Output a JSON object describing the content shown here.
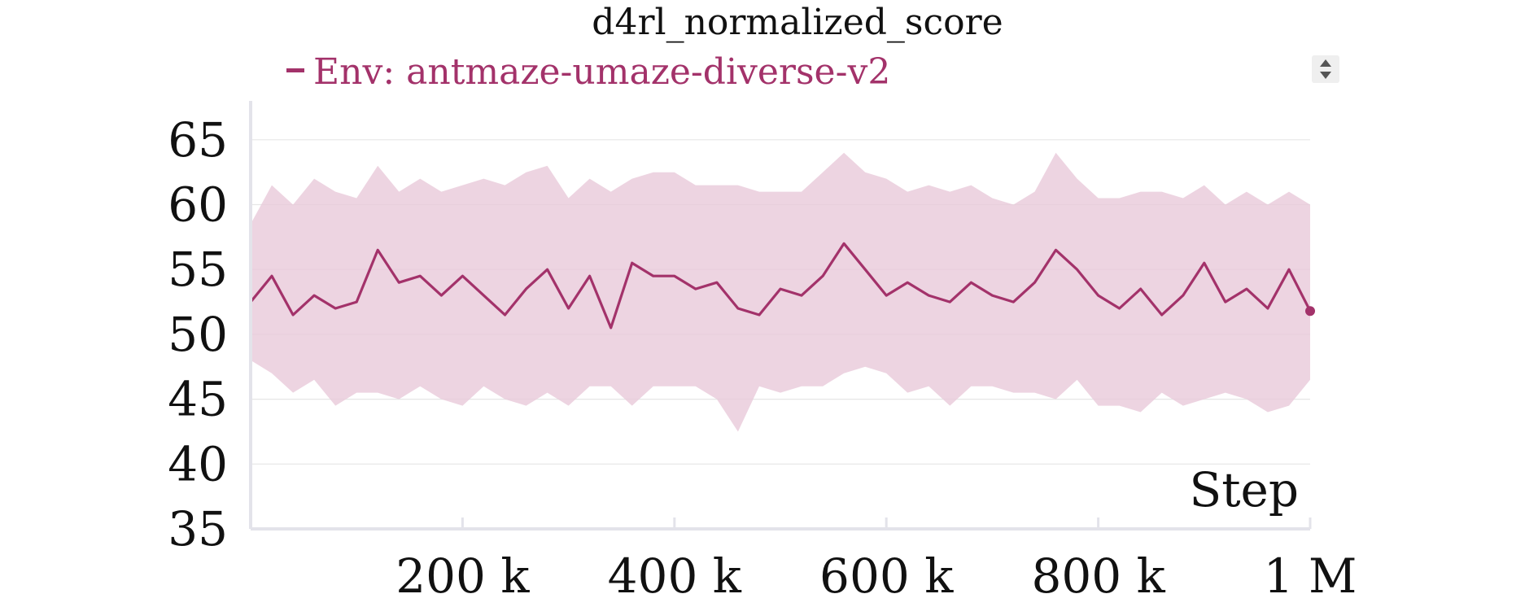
{
  "chart_data": {
    "type": "line",
    "title": "d4rl_normalized_score",
    "xlabel": "Step",
    "ylabel": "",
    "xlim": [
      0,
      1000000
    ],
    "ylim": [
      35,
      68
    ],
    "y_ticks": [
      35,
      40,
      45,
      50,
      55,
      60,
      65
    ],
    "x_ticks": [
      {
        "value": 200000,
        "label": "200 k"
      },
      {
        "value": 400000,
        "label": "400 k"
      },
      {
        "value": 600000,
        "label": "600 k"
      },
      {
        "value": 800000,
        "label": "800 k"
      },
      {
        "value": 1000000,
        "label": "1 M"
      }
    ],
    "grid": true,
    "legend_position": "top-left",
    "series": [
      {
        "name": "Env: antmaze-umaze-diverse-v2",
        "color": "#a3326a",
        "band_color": "#e8c9da",
        "x": [
          0,
          20000,
          40000,
          60000,
          80000,
          100000,
          120000,
          140000,
          160000,
          180000,
          200000,
          220000,
          240000,
          260000,
          280000,
          300000,
          320000,
          340000,
          360000,
          380000,
          400000,
          420000,
          440000,
          460000,
          480000,
          500000,
          520000,
          540000,
          560000,
          580000,
          600000,
          620000,
          640000,
          660000,
          680000,
          700000,
          720000,
          740000,
          760000,
          780000,
          800000,
          820000,
          840000,
          860000,
          880000,
          900000,
          920000,
          940000,
          960000,
          980000,
          1000000
        ],
        "y": [
          52.5,
          54.5,
          51.5,
          53.0,
          52.0,
          52.5,
          56.5,
          54.0,
          54.5,
          53.0,
          54.5,
          53.0,
          51.5,
          53.5,
          55.0,
          52.0,
          54.5,
          50.5,
          55.5,
          54.5,
          54.5,
          53.5,
          54.0,
          52.0,
          51.5,
          53.5,
          53.0,
          54.5,
          57.0,
          55.0,
          53.0,
          54.0,
          53.0,
          52.5,
          54.0,
          53.0,
          52.5,
          54.0,
          56.5,
          55.0,
          53.0,
          52.0,
          53.5,
          51.5,
          53.0,
          55.5,
          52.5,
          53.5,
          52.0,
          55.0,
          51.8
        ],
        "lower": [
          48.0,
          47.0,
          45.5,
          46.5,
          44.5,
          45.5,
          45.5,
          45.0,
          46.0,
          45.0,
          44.5,
          46.0,
          45.0,
          44.5,
          45.5,
          44.5,
          46.0,
          46.0,
          44.5,
          46.0,
          46.0,
          46.0,
          45.0,
          42.5,
          46.0,
          45.5,
          46.0,
          46.0,
          47.0,
          47.5,
          47.0,
          45.5,
          46.0,
          44.5,
          46.0,
          46.0,
          45.5,
          45.5,
          45.0,
          46.5,
          44.5,
          44.5,
          44.0,
          45.5,
          44.5,
          45.0,
          45.5,
          45.0,
          44.0,
          44.5,
          46.5
        ],
        "upper": [
          58.5,
          61.5,
          60.0,
          62.0,
          61.0,
          60.5,
          63.0,
          61.0,
          62.0,
          61.0,
          61.5,
          62.0,
          61.5,
          62.5,
          63.0,
          60.5,
          62.0,
          61.0,
          62.0,
          62.5,
          62.5,
          61.5,
          61.5,
          61.5,
          61.0,
          61.0,
          61.0,
          62.5,
          64.0,
          62.5,
          62.0,
          61.0,
          61.5,
          61.0,
          61.5,
          60.5,
          60.0,
          61.0,
          64.0,
          62.0,
          60.5,
          60.5,
          61.0,
          61.0,
          60.5,
          61.5,
          60.0,
          61.0,
          60.0,
          61.0,
          60.0
        ]
      }
    ]
  },
  "ui": {
    "legend_toggle_icon": "sort-arrows-icon"
  }
}
